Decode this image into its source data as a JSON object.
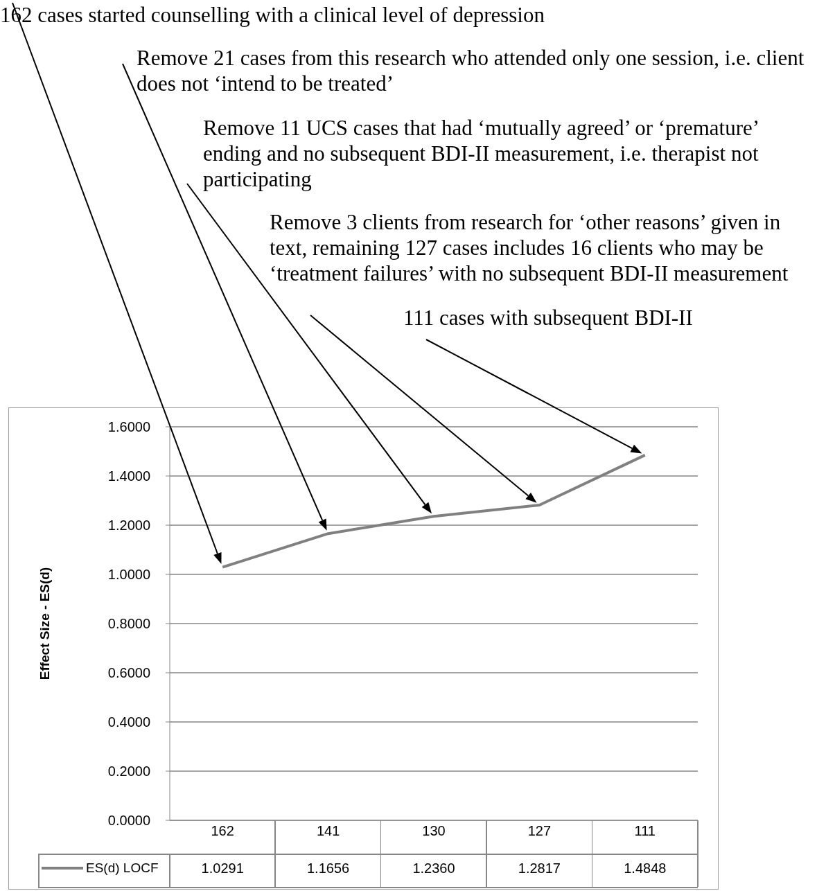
{
  "chart_data": {
    "type": "line",
    "ylabel": "Effect Size - ES(d)",
    "categories": [
      "162",
      "141",
      "130",
      "127",
      "111"
    ],
    "series": [
      {
        "name": "ES(d) LOCF",
        "color": "#808080",
        "values": [
          1.0291,
          1.1656,
          1.236,
          1.2817,
          1.4848
        ],
        "value_labels": [
          "1.0291",
          "1.1656",
          "1.2360",
          "1.2817",
          "1.4848"
        ]
      }
    ],
    "ylim": [
      0,
      1.6
    ],
    "yticks": [
      {
        "value": 0,
        "label": "0.0000"
      },
      {
        "value": 0.2,
        "label": "0.2000"
      },
      {
        "value": 0.4,
        "label": "0.4000"
      },
      {
        "value": 0.6,
        "label": "0.6000"
      },
      {
        "value": 0.8,
        "label": "0.8000"
      },
      {
        "value": 1,
        "label": "1.0000"
      },
      {
        "value": 1.2,
        "label": "1.2000"
      },
      {
        "value": 1.4,
        "label": "1.4000"
      },
      {
        "value": 1.6,
        "label": "1.6000"
      }
    ],
    "grid": "y",
    "legend": "bottom",
    "marker": "none",
    "annotations": [
      "162 cases started counselling with a clinical level of depression",
      "Remove 21 cases from this research who attended only one session, i.e. client does not ‘intend to be treated’",
      "Remove 11 UCS cases that had ‘mutually agreed’ or ‘premature’ ending and no subsequent BDI-II measurement, i.e. therapist not participating",
      "Remove 3 clients from research for ‘other reasons’ given in text, remaining 127 cases includes 16 clients who may be ‘treatment failures’ with no subsequent BDI-II measurement",
      "111 cases with subsequent BDI-II"
    ]
  }
}
